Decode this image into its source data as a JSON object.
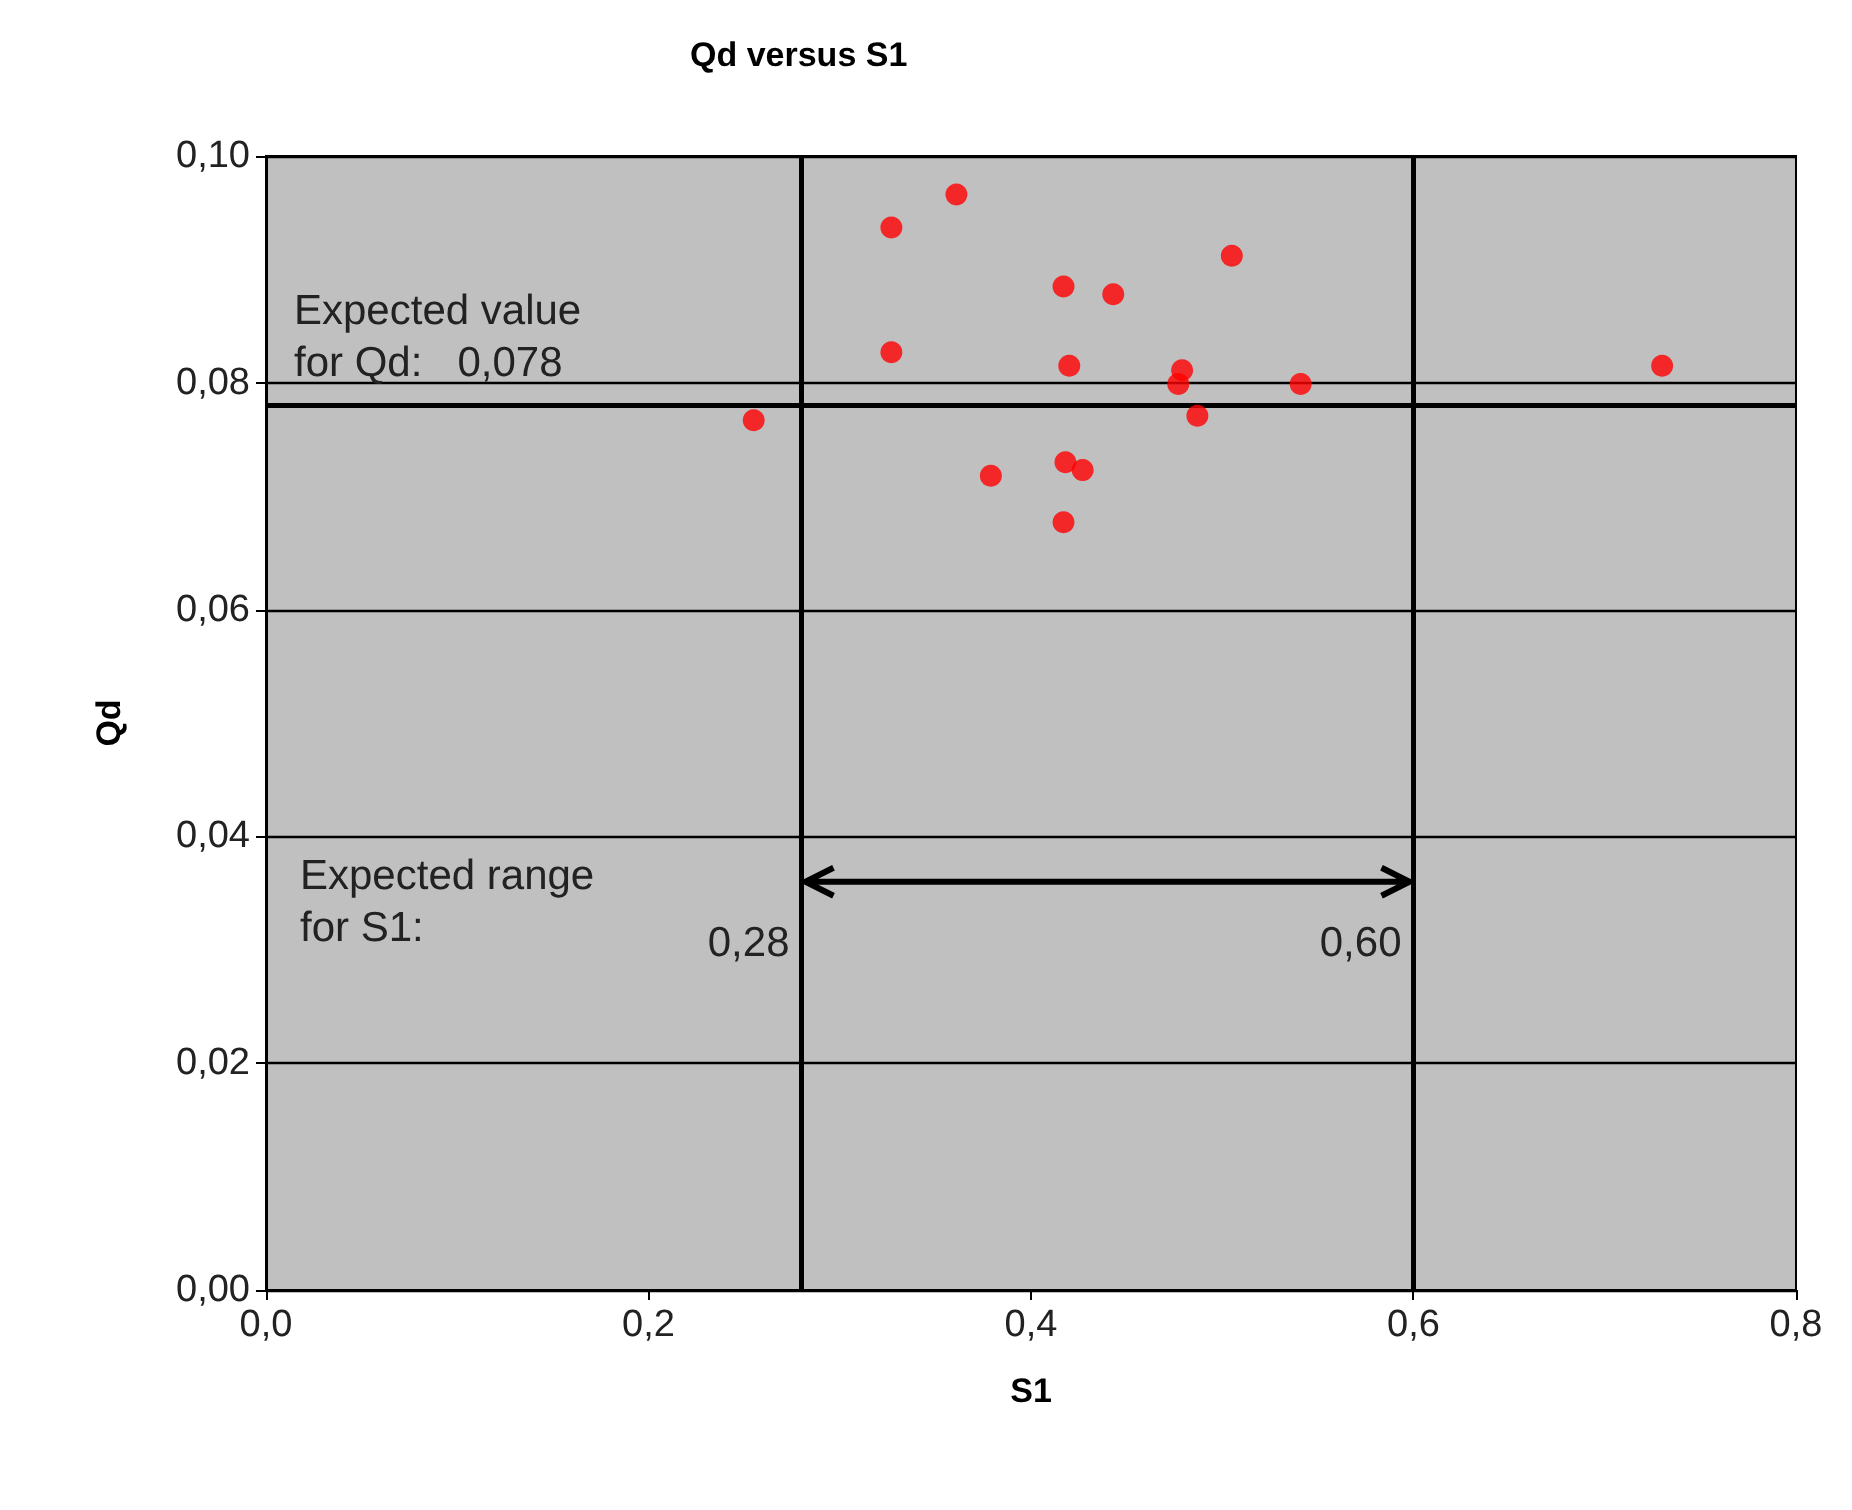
{
  "chart_data": {
    "type": "scatter",
    "title": "Qd versus S1",
    "xlabel": "S1",
    "ylabel": "Qd",
    "x": [
      0.255,
      0.327,
      0.327,
      0.361,
      0.379,
      0.417,
      0.443,
      0.42,
      0.418,
      0.427,
      0.417,
      0.505,
      0.479,
      0.477,
      0.487,
      0.541,
      0.73
    ],
    "series": [
      {
        "color": "#ff0000",
        "values": [
          0.0767,
          0.0937,
          0.0827,
          0.0966,
          0.0718,
          0.0885,
          0.0878,
          0.0815,
          0.073,
          0.0723,
          0.0677,
          0.0912,
          0.0811,
          0.0799,
          0.0771,
          0.0799,
          0.0815
        ]
      }
    ],
    "xlim": [
      0,
      0.8
    ],
    "ylim": [
      0,
      0.1
    ],
    "xticks": [
      {
        "value": 0,
        "label": "0,0"
      },
      {
        "value": 0.2,
        "label": "0,2"
      },
      {
        "value": 0.4,
        "label": "0,4"
      },
      {
        "value": 0.6,
        "label": "0,6"
      },
      {
        "value": 0.8,
        "label": "0,8"
      }
    ],
    "yticks": [
      {
        "value": 0,
        "label": "0,00"
      },
      {
        "value": 0.02,
        "label": "0,02"
      },
      {
        "value": 0.04,
        "label": "0,04"
      },
      {
        "value": 0.06,
        "label": "0,06"
      },
      {
        "value": 0.08,
        "label": "0,08"
      },
      {
        "value": 0.1,
        "label": "0,10"
      }
    ],
    "grid": "y",
    "marker": "circle",
    "ref_lines": [
      {
        "axis": "y",
        "value": 0.078,
        "label": "Expected value\nfor Qd:   0,078",
        "color": "#000000"
      },
      {
        "axis": "x",
        "value": 0.28,
        "label": "0,28",
        "color": "#000000"
      },
      {
        "axis": "x",
        "value": 0.6,
        "label": "0,60",
        "color": "#000000"
      }
    ],
    "annotations": [
      "Expected range\nfor S1:"
    ]
  }
}
